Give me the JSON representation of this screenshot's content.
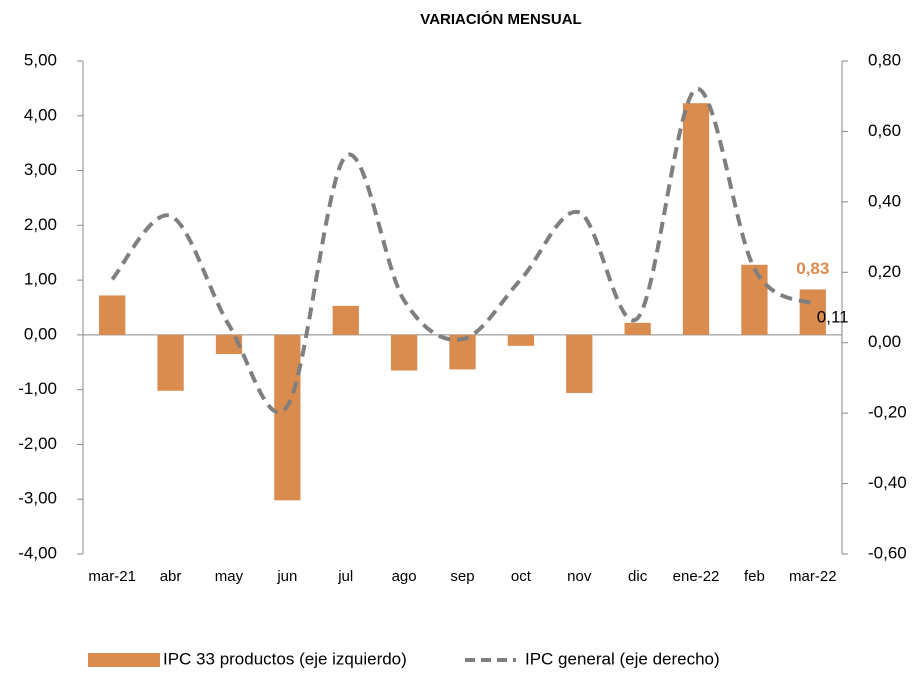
{
  "chart_data": {
    "type": "bar_line",
    "title": "VARIACIÓN MENSUAL",
    "categories": [
      "mar-21",
      "abr",
      "may",
      "jun",
      "jul",
      "ago",
      "sep",
      "oct",
      "nov",
      "dic",
      "ene-22",
      "feb",
      "mar-22"
    ],
    "series": [
      {
        "name": "IPC 33 productos (eje izquierdo)",
        "type": "bar",
        "color": "#d98c4e",
        "values": [
          0.72,
          -1.02,
          -0.35,
          -3.02,
          0.53,
          -0.65,
          -0.63,
          -0.2,
          -1.06,
          0.22,
          4.23,
          1.28,
          0.83
        ],
        "value_labels": [
          null,
          null,
          null,
          null,
          null,
          null,
          null,
          null,
          null,
          null,
          null,
          null,
          "0,83"
        ]
      },
      {
        "name": "IPC general (eje derecho)",
        "type": "line",
        "axis": "y2",
        "color": "#7f7f7f",
        "dashed": true,
        "values": [
          0.18,
          0.36,
          0.05,
          -0.18,
          0.53,
          0.12,
          0.01,
          0.18,
          0.37,
          0.07,
          0.72,
          0.21,
          0.11
        ],
        "value_labels": [
          null,
          null,
          null,
          null,
          null,
          null,
          null,
          null,
          null,
          null,
          null,
          null,
          "0,11"
        ]
      }
    ],
    "ylim": [
      -4,
      5
    ],
    "yticks": [
      {
        "value": -4,
        "label": "-4,00"
      },
      {
        "value": -3,
        "label": "-3,00"
      },
      {
        "value": -2,
        "label": "-2,00"
      },
      {
        "value": -1,
        "label": "-1,00"
      },
      {
        "value": 0,
        "label": "0,00"
      },
      {
        "value": 1,
        "label": "1,00"
      },
      {
        "value": 2,
        "label": "2,00"
      },
      {
        "value": 3,
        "label": "3,00"
      },
      {
        "value": 4,
        "label": "4,00"
      },
      {
        "value": 5,
        "label": "5,00"
      }
    ],
    "y2lim": [
      -0.6,
      0.8
    ],
    "y2ticks": [
      {
        "value": -0.6,
        "label": "-0,60"
      },
      {
        "value": -0.4,
        "label": "-0,40"
      },
      {
        "value": -0.2,
        "label": "-0,20"
      },
      {
        "value": 0,
        "label": "0,00"
      },
      {
        "value": 0.2,
        "label": "0,20"
      },
      {
        "value": 0.4,
        "label": "0,40"
      },
      {
        "value": 0.6,
        "label": "0,60"
      },
      {
        "value": 0.8,
        "label": "0,80"
      }
    ],
    "legend": "bottom"
  }
}
